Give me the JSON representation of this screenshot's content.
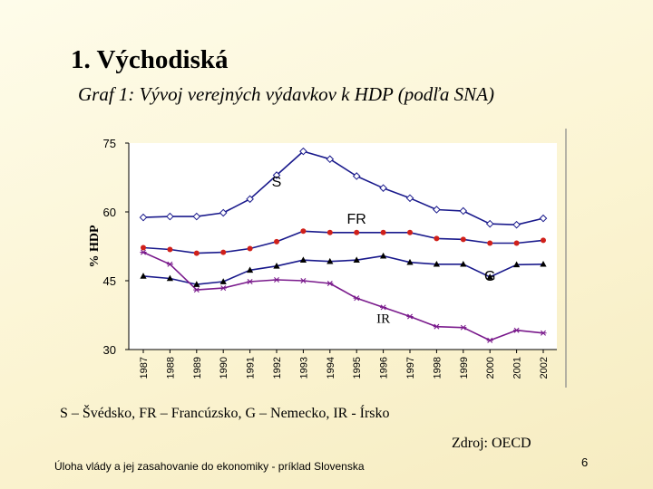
{
  "slide": {
    "title": "1. Východiská",
    "legend_text": "S – Švédsko, FR – Francúzsko, G – Nemecko, IR - Írsko",
    "source": "Zdroj: OECD",
    "footer": "Úloha  vlády a jej zasahovanie do ekonomiky - príklad Slovenska",
    "page_number": "6"
  },
  "chart_data": {
    "type": "line",
    "title": "Graf 1:  Vývoj verejných výdavkov k HDP (podľa SNA)",
    "ylabel": "% HDP",
    "xlabel": "",
    "ylim": [
      30,
      75
    ],
    "yticks": [
      "75",
      "60",
      "45",
      "30"
    ],
    "x": [
      "1987",
      "1988",
      "1989",
      "1990",
      "1991",
      "1992",
      "1993",
      "1994",
      "1995",
      "1996",
      "1997",
      "1998",
      "1999",
      "2000",
      "2001",
      "2002"
    ],
    "grid": false,
    "series": [
      {
        "name": "S",
        "marker": "diamond",
        "color": "#1a1a8c",
        "values": [
          58.8,
          59.0,
          59.0,
          59.8,
          62.8,
          68.0,
          73.2,
          71.5,
          67.8,
          65.2,
          63.0,
          60.5,
          60.2,
          57.4,
          57.2,
          58.6
        ]
      },
      {
        "name": "FR",
        "marker": "circle",
        "color": "#1a1a8c",
        "marker_color": "#d0201a",
        "values": [
          52.2,
          51.8,
          51.0,
          51.2,
          52.0,
          53.5,
          55.8,
          55.5,
          55.5,
          55.5,
          55.5,
          54.2,
          54.0,
          53.2,
          53.2,
          53.8
        ]
      },
      {
        "name": "G",
        "marker": "triangle",
        "color": "#1a1a8c",
        "values": [
          46.0,
          45.5,
          44.2,
          44.8,
          47.3,
          48.2,
          49.5,
          49.2,
          49.5,
          50.4,
          49.0,
          48.6,
          48.6,
          45.8,
          48.5,
          48.6
        ]
      },
      {
        "name": "IR",
        "marker": "star",
        "color": "#7a1a8c",
        "values": [
          51.2,
          48.6,
          43.0,
          43.4,
          44.8,
          45.2,
          45.0,
          44.4,
          41.2,
          39.2,
          37.2,
          35.0,
          34.8,
          32.0,
          34.2,
          33.6
        ]
      }
    ],
    "series_label_positions": [
      {
        "name": "S",
        "x": "1992",
        "y": 65.5
      },
      {
        "name": "FR",
        "x": "1995",
        "y": 57.4
      },
      {
        "name": "G",
        "x": "2000",
        "y": 45.0
      },
      {
        "name": "IR",
        "x": "1996",
        "y": 35.8
      }
    ]
  }
}
